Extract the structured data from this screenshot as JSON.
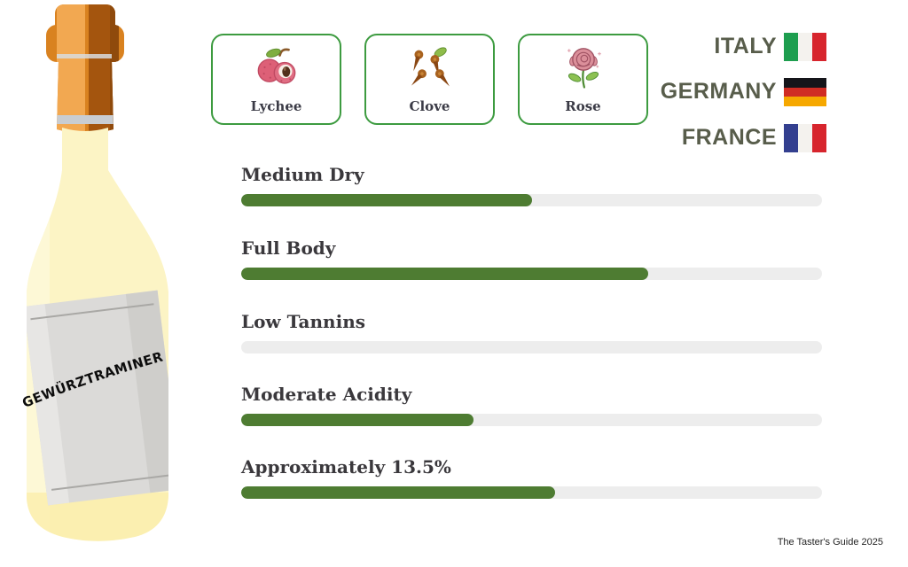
{
  "bottle": {
    "label_text": "GEWÜRZTRAMINER"
  },
  "flavors": [
    {
      "name": "Lychee",
      "icon": "lychee-icon"
    },
    {
      "name": "Clove",
      "icon": "clove-icon"
    },
    {
      "name": "Rose",
      "icon": "rose-icon"
    }
  ],
  "countries": [
    {
      "name": "ITALY",
      "flag": "italy-flag"
    },
    {
      "name": "GERMANY",
      "flag": "germany-flag"
    },
    {
      "name": "FRANCE",
      "flag": "france-flag"
    }
  ],
  "attributes": [
    {
      "label": "Medium Dry",
      "percent": 50
    },
    {
      "label": "Full Body",
      "percent": 70
    },
    {
      "label": "Low Tannins",
      "percent": 0
    },
    {
      "label": "Moderate Acidity",
      "percent": 40
    },
    {
      "label": "Approximately 13.5%",
      "percent": 54
    }
  ],
  "footer": {
    "credit": "The Taster's Guide 2025"
  },
  "colors": {
    "accent_green": "#4e7c32",
    "card_border": "#3d9b40",
    "track_gray": "#ededed",
    "country_text": "#585d4b",
    "heading_text": "#3a383c",
    "bottle_glass": "#fcf4c5",
    "bottle_foil": "#d98220",
    "bottle_label": "#dbdad8"
  }
}
